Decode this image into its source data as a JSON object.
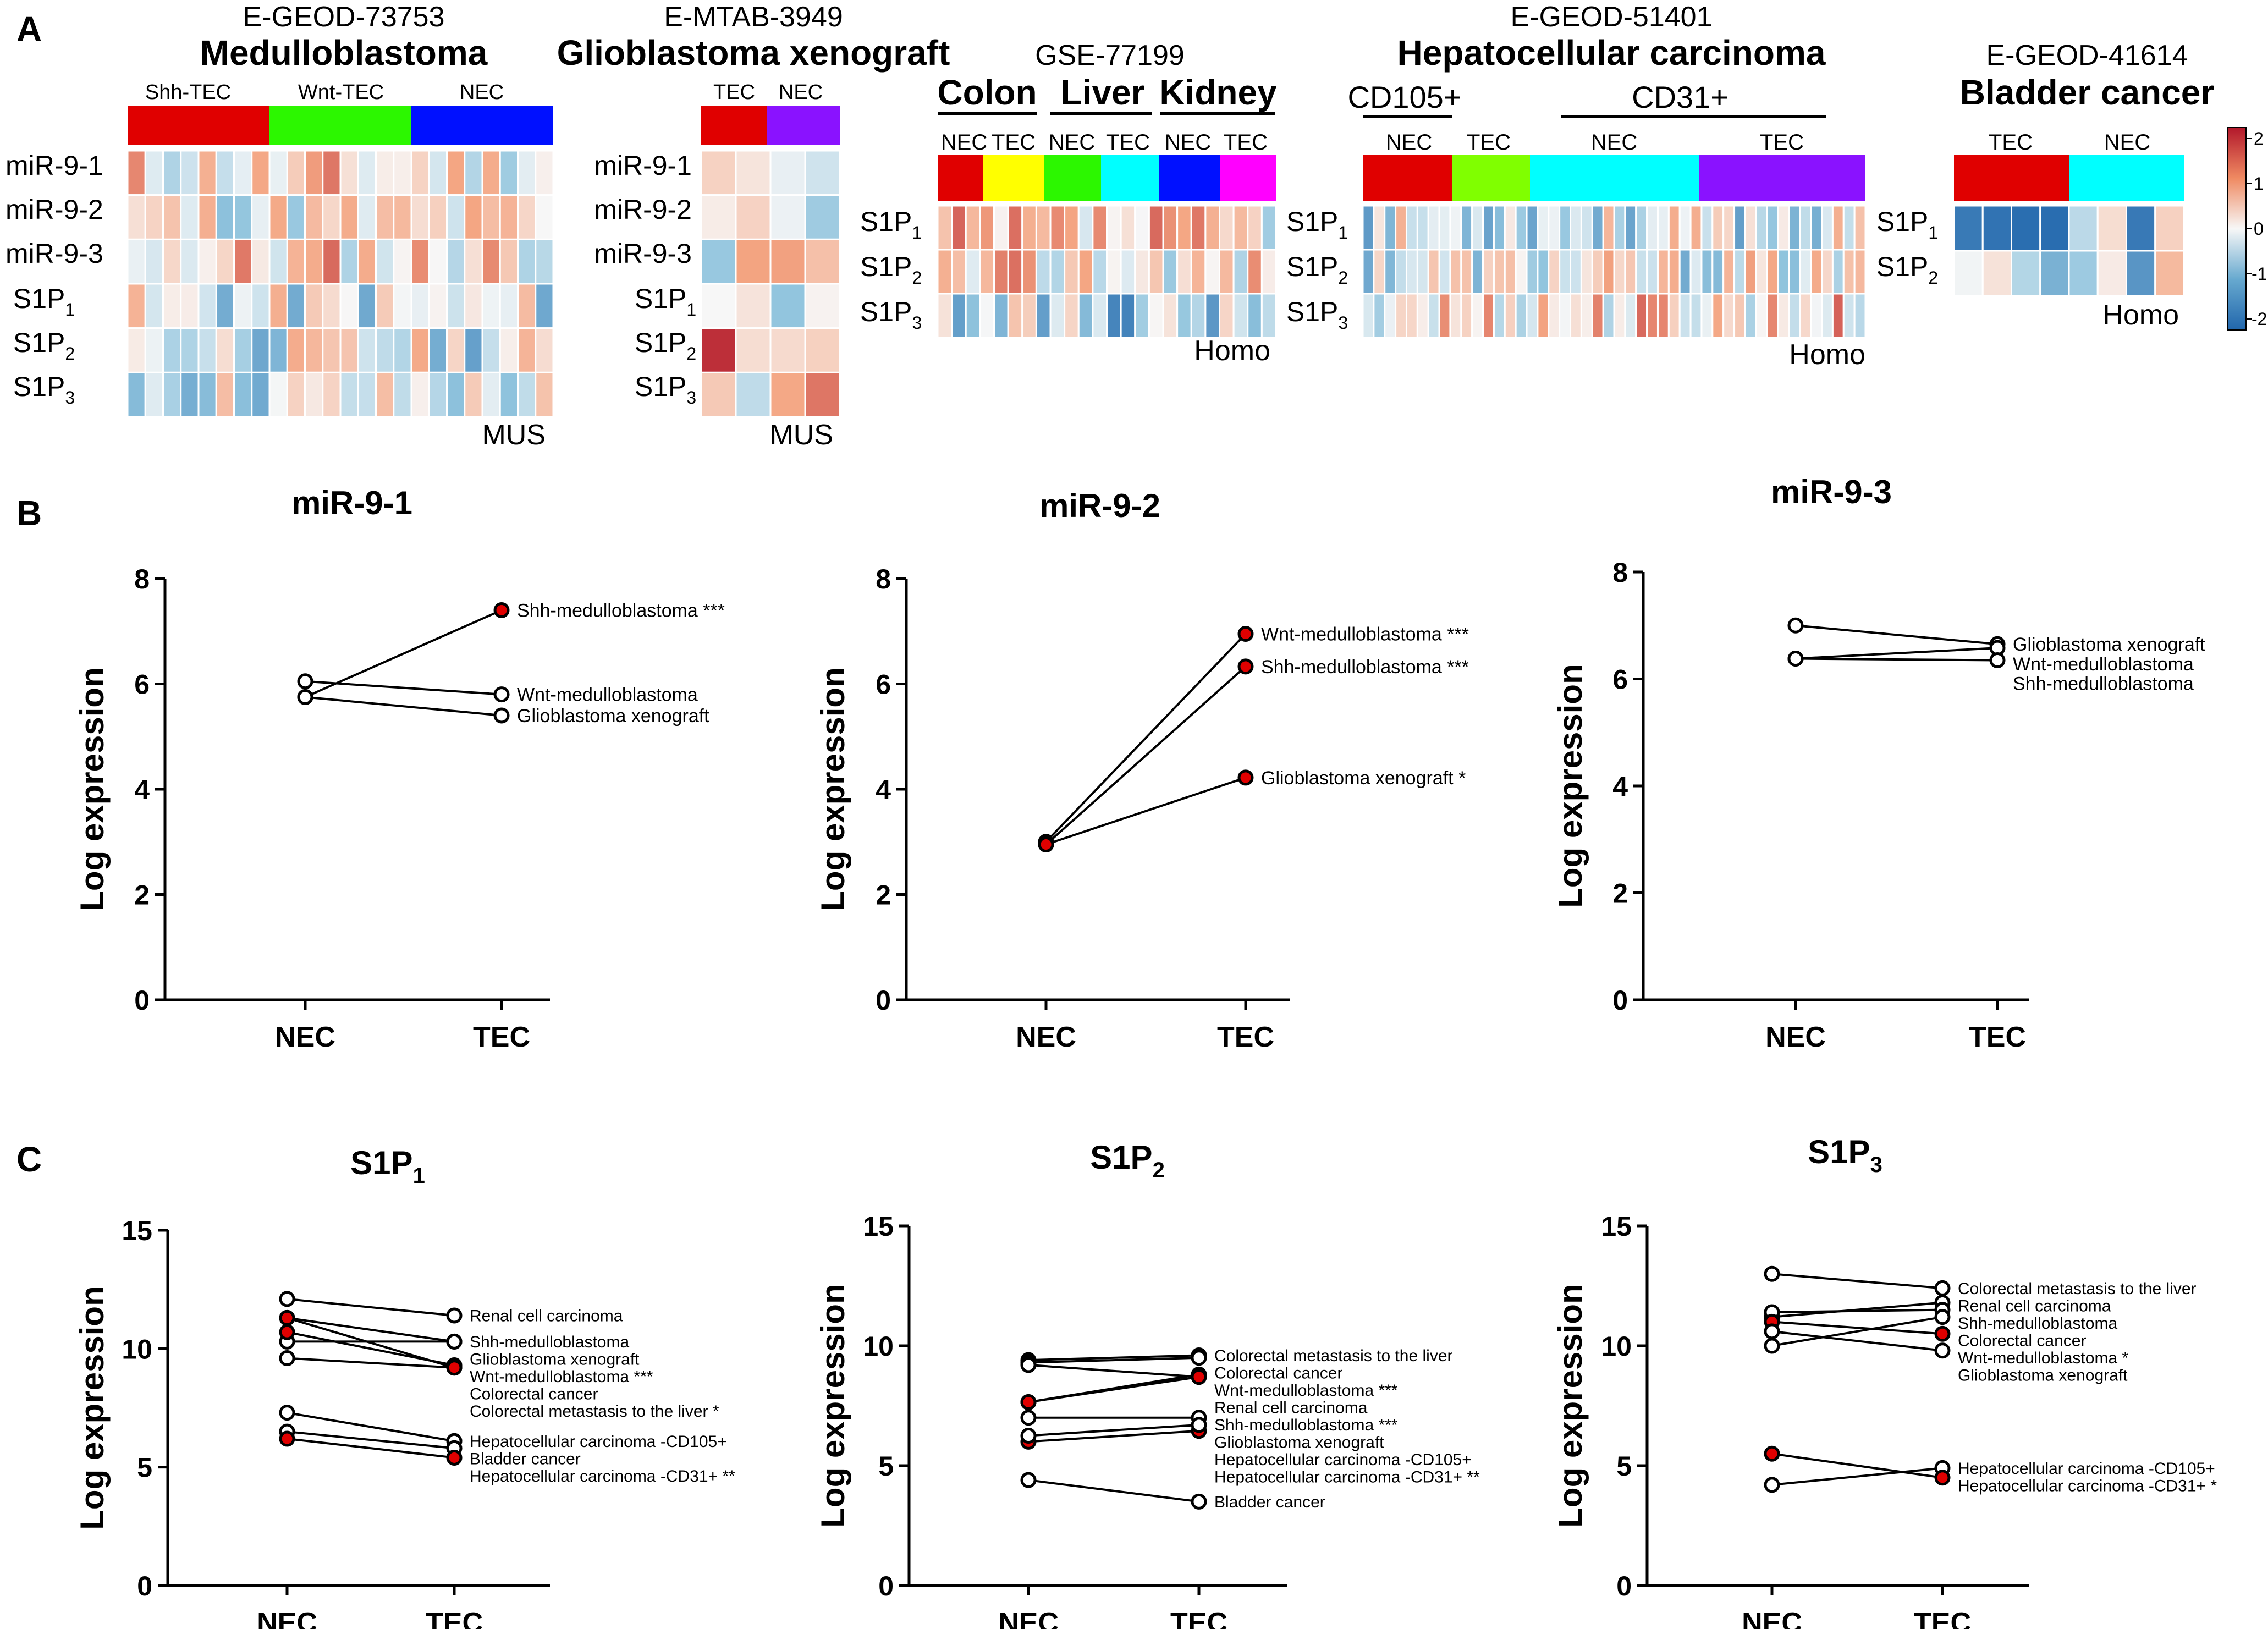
{
  "figure": {
    "palette": {
      "red": "#e00000",
      "green": "#2cf700",
      "blue": "#0010ff",
      "purple": "#8a12ff",
      "yellow": "#ffff00",
      "cyan": "#00ffff",
      "magenta": "#ff00ff",
      "lime": "#80ff00",
      "hi": "#b2182b",
      "lo": "#2166ac"
    }
  },
  "panel_a": {
    "letter": "A",
    "colorbar": {
      "ticks": [
        "2",
        "1",
        "0",
        "-1",
        "-2"
      ]
    },
    "datasets": [
      {
        "id": "E-GEOD-73753",
        "title": "Medulloblastoma",
        "species": "MUS",
        "groups": [
          {
            "label": "Shh-TEC",
            "color": "#e00000"
          },
          {
            "label": "Wnt-TEC",
            "color": "#2cf700"
          },
          {
            "label": "NEC",
            "color": "#0010ff"
          }
        ],
        "rows": [
          "miR-9-1",
          "miR-9-2",
          "miR-9-3",
          "S1P1",
          "S1P2",
          "S1P3"
        ]
      },
      {
        "id": "E-MTAB-3949",
        "title": "Glioblastoma xenograft",
        "species": "MUS",
        "groups": [
          {
            "label": "TEC",
            "color": "#e00000"
          },
          {
            "label": "NEC",
            "color": "#8a12ff"
          }
        ],
        "rows": [
          "miR-9-1",
          "miR-9-2",
          "miR-9-3",
          "S1P1",
          "S1P2",
          "S1P3"
        ]
      },
      {
        "id": "GSE-77199",
        "title": "",
        "species": "Homo",
        "tissues": [
          "Colon",
          "Liver",
          "Kidney"
        ],
        "groups": [
          {
            "label": "NEC",
            "color": "#e00000"
          },
          {
            "label": "TEC",
            "color": "#ffff00"
          },
          {
            "label": "NEC",
            "color": "#2cf700"
          },
          {
            "label": "TEC",
            "color": "#00ffff"
          },
          {
            "label": "NEC",
            "color": "#0010ff"
          },
          {
            "label": "TEC",
            "color": "#ff00ff"
          }
        ],
        "rows": [
          "S1P1",
          "S1P2",
          "S1P3"
        ]
      },
      {
        "id": "E-GEOD-51401",
        "title": "Hepatocellular carcinoma",
        "species": "Homo",
        "markers": [
          "CD105+",
          "CD31+"
        ],
        "groups": [
          {
            "label": "NEC",
            "color": "#e00000"
          },
          {
            "label": "TEC",
            "color": "#80ff00"
          },
          {
            "label": "NEC",
            "color": "#00ffff"
          },
          {
            "label": "TEC",
            "color": "#8a12ff"
          }
        ],
        "rows": [
          "S1P1",
          "S1P2",
          "S1P3"
        ]
      },
      {
        "id": "E-GEOD-41614",
        "title": "Bladder cancer",
        "species": "Homo",
        "groups": [
          {
            "label": "TEC",
            "color": "#e00000"
          },
          {
            "label": "NEC",
            "color": "#00ffff"
          }
        ],
        "rows": [
          "S1P1",
          "S1P2"
        ]
      }
    ]
  },
  "panel_b": {
    "letter": "B"
  },
  "panel_c": {
    "letter": "C"
  },
  "chart_data": [
    {
      "type": "line",
      "panel": "B",
      "title": "miR-9-1",
      "ylabel": "Log expression",
      "categories": [
        "NEC",
        "TEC"
      ],
      "ylim": [
        0,
        8
      ],
      "yticks": [
        "0",
        "2",
        "4",
        "6",
        "8"
      ],
      "series": [
        {
          "name": "Shh-medulloblastoma ***",
          "values": [
            5.75,
            7.4
          ],
          "significant": true
        },
        {
          "name": "Wnt-medulloblastoma",
          "values": [
            6.05,
            5.8
          ],
          "significant": false
        },
        {
          "name": "Glioblastoma xenograft",
          "values": [
            5.75,
            5.4
          ],
          "significant": false
        }
      ]
    },
    {
      "type": "line",
      "panel": "B",
      "title": "miR-9-2",
      "ylabel": "Log expression",
      "categories": [
        "NEC",
        "TEC"
      ],
      "ylim": [
        0,
        8
      ],
      "yticks": [
        "0",
        "2",
        "4",
        "6",
        "8"
      ],
      "series": [
        {
          "name": "Wnt-medulloblastoma ***",
          "values": [
            3.0,
            6.95
          ],
          "significant": true
        },
        {
          "name": "Shh-medulloblastoma ***",
          "values": [
            2.95,
            6.33
          ],
          "significant": true
        },
        {
          "name": "Glioblastoma xenograft *",
          "values": [
            2.95,
            4.22
          ],
          "significant": true
        }
      ]
    },
    {
      "type": "line",
      "panel": "B",
      "title": "miR-9-3",
      "ylabel": "Log expression",
      "categories": [
        "NEC",
        "TEC"
      ],
      "ylim": [
        0,
        8
      ],
      "yticks": [
        "0",
        "2",
        "4",
        "6",
        "8"
      ],
      "series": [
        {
          "name": "Glioblastoma xenograft",
          "values": [
            7.0,
            6.65
          ],
          "significant": false
        },
        {
          "name": "Wnt-medulloblastoma",
          "values": [
            6.38,
            6.58
          ],
          "significant": false
        },
        {
          "name": "Shh-medulloblastoma",
          "values": [
            6.38,
            6.35
          ],
          "significant": false
        }
      ]
    },
    {
      "type": "line",
      "panel": "C",
      "title": "S1P",
      "title_sub": "1",
      "ylabel": "Log expression",
      "categories": [
        "NEC",
        "TEC"
      ],
      "ylim": [
        0,
        15
      ],
      "yticks": [
        "0",
        "5",
        "10",
        "15"
      ],
      "series": [
        {
          "name": "Renal cell carcinoma",
          "values": [
            12.1,
            11.4
          ],
          "significant": false
        },
        {
          "name": "Shh-medulloblastoma",
          "values": [
            11.3,
            10.3
          ],
          "significant": false
        },
        {
          "name": "Glioblastoma xenograft",
          "values": [
            10.3,
            10.3
          ],
          "significant": false
        },
        {
          "name": "Colorectal cancer",
          "values": [
            9.6,
            9.2
          ],
          "significant": false
        },
        {
          "name": "Wnt-medulloblastoma ***",
          "values": [
            10.7,
            9.3
          ],
          "significant": true
        },
        {
          "name": "Colorectal metastasis to the liver *",
          "values": [
            11.3,
            9.2
          ],
          "significant": true
        },
        {
          "name": "Hepatocellular carcinoma -CD105+",
          "values": [
            7.3,
            6.1
          ],
          "significant": false
        },
        {
          "name": "Bladder cancer",
          "values": [
            6.5,
            5.8
          ],
          "significant": false
        },
        {
          "name": "Hepatocellular carcinoma -CD31+  **",
          "values": [
            6.2,
            5.4
          ],
          "significant": true
        }
      ]
    },
    {
      "type": "line",
      "panel": "C",
      "title": "S1P",
      "title_sub": "2",
      "ylabel": "Log expression",
      "categories": [
        "NEC",
        "TEC"
      ],
      "ylim": [
        0,
        15
      ],
      "yticks": [
        "0",
        "5",
        "10",
        "15"
      ],
      "series": [
        {
          "name": "Colorectal metastasis to the liver",
          "values": [
            9.4,
            9.6
          ],
          "significant": false
        },
        {
          "name": "Colorectal cancer",
          "values": [
            9.3,
            9.5
          ],
          "significant": false
        },
        {
          "name": "Renal cell carcinoma",
          "values": [
            9.2,
            8.7
          ],
          "significant": false
        },
        {
          "name": "Wnt-medulloblastoma ***",
          "values": [
            7.65,
            8.8
          ],
          "significant": true
        },
        {
          "name": "Shh-medulloblastoma ***",
          "values": [
            7.65,
            8.7
          ],
          "significant": true
        },
        {
          "name": "Glioblastoma xenograft",
          "values": [
            7.0,
            7.0
          ],
          "significant": false
        },
        {
          "name": "Hepatocellular carcinoma -CD31+ **",
          "values": [
            6.0,
            6.45
          ],
          "significant": true
        },
        {
          "name": "Hepatocellular carcinoma -CD105+",
          "values": [
            6.25,
            6.7
          ],
          "significant": false
        },
        {
          "name": "Bladder cancer",
          "values": [
            4.4,
            3.5
          ],
          "significant": false
        }
      ]
    },
    {
      "type": "line",
      "panel": "C",
      "title": "S1P",
      "title_sub": "3",
      "ylabel": "Log expression",
      "categories": [
        "NEC",
        "TEC"
      ],
      "ylim": [
        0,
        15
      ],
      "yticks": [
        "0",
        "5",
        "10",
        "15"
      ],
      "series": [
        {
          "name": "Colorectal metastasis to the liver",
          "values": [
            13.0,
            12.4
          ],
          "significant": false
        },
        {
          "name": "Renal cell carcinoma",
          "values": [
            11.2,
            11.8
          ],
          "significant": false
        },
        {
          "name": "Shh-medulloblastoma",
          "values": [
            11.4,
            11.5
          ],
          "significant": false
        },
        {
          "name": "Wnt-medulloblastoma *",
          "values": [
            11.0,
            10.5
          ],
          "significant": true
        },
        {
          "name": "Glioblastoma xenograft",
          "values": [
            10.6,
            9.8
          ],
          "significant": false
        },
        {
          "name": "Colorectal cancer",
          "values": [
            10.0,
            11.2
          ],
          "significant": false
        },
        {
          "name": "Hepatocellular carcinoma -CD105+",
          "values": [
            4.2,
            4.9
          ],
          "significant": false
        },
        {
          "name": "Hepatocellular carcinoma -CD31+ *",
          "values": [
            5.5,
            4.5
          ],
          "significant": true
        }
      ]
    }
  ]
}
